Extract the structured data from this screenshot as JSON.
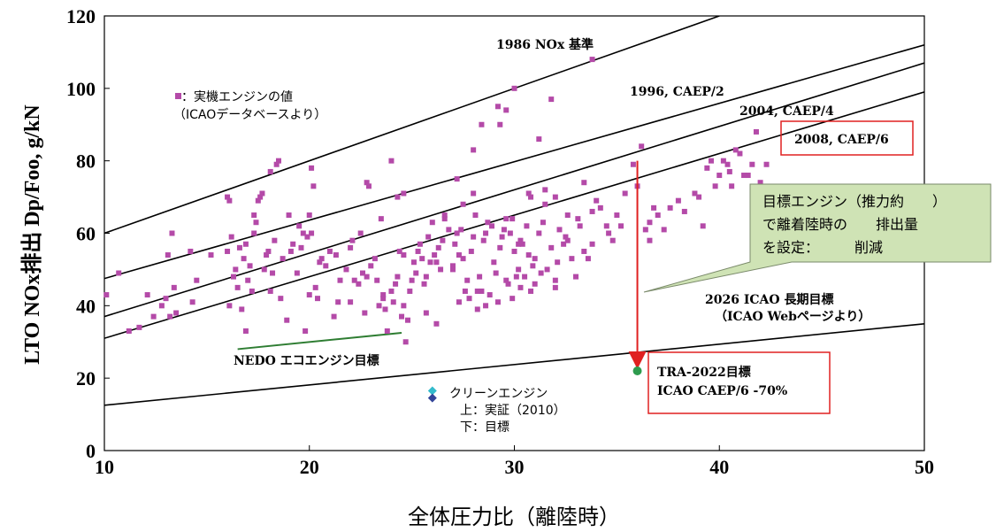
{
  "chart_data": {
    "type": "scatter",
    "xlabel": "全体圧力比（離陸時）",
    "ylabel": "LTO NOx排出  Dp/Foo, g/kN",
    "xlim": [
      10,
      50
    ],
    "ylim": [
      0,
      120
    ],
    "x_ticks": [
      "10",
      "20",
      "30",
      "40",
      "50"
    ],
    "y_ticks": [
      "0",
      "20",
      "40",
      "60",
      "80",
      "100",
      "120"
    ],
    "grid": false,
    "legend": {
      "marker_label": "：実機エンジンの値",
      "source_label": "（ICAOデータベースより）",
      "color": "#b44aa8"
    },
    "lines": [
      {
        "name": "1986 NOx 基準",
        "points": [
          [
            10,
            60
          ],
          [
            40,
            120
          ]
        ]
      },
      {
        "name": "1996, CAEP/2",
        "points": [
          [
            10,
            47.5
          ],
          [
            50,
            112
          ]
        ]
      },
      {
        "name": "2004, CAEP/4",
        "points": [
          [
            10,
            37
          ],
          [
            50,
            107
          ]
        ]
      },
      {
        "name": "2008, CAEP/6",
        "points": [
          [
            10,
            31
          ],
          [
            50,
            99
          ]
        ]
      },
      {
        "name": "2026 ICAO 長期目標",
        "points": [
          [
            10,
            12.5
          ],
          [
            50,
            35
          ]
        ]
      }
    ],
    "labels": {
      "line_1986": "1986 NOx 基準",
      "line_1996": "1996, CAEP/2",
      "line_2004": "2004, CAEP/4",
      "line_2008": "2008, CAEP/6",
      "longterm_1": "2026 ICAO 長期目標",
      "longterm_2": "（ICAO Webページより）",
      "nedo": "NEDO エコエンジン目標",
      "clean_title": "クリーンエンジン",
      "clean_top": "上：実証（2010）",
      "clean_bottom": "下：目標",
      "tra_1": "TRA-2022目標",
      "tra_2": "ICAO CAEP/6 -70%",
      "callout_1": "目標エンジン（推力約　　）",
      "callout_2": "で離着陸時の　　排出量",
      "callout_3": "を設定：　　　削減"
    },
    "nedo_line": {
      "points": [
        [
          16.5,
          28
        ],
        [
          24.5,
          32.5
        ]
      ],
      "color": "#2e7d32"
    },
    "clean_engine": {
      "demonstrated": {
        "x": 26,
        "y": 16.5,
        "color": "#33bbcc"
      },
      "target": {
        "x": 26,
        "y": 14.5,
        "color": "#334499"
      }
    },
    "tra_target": {
      "x": 36,
      "y": 22,
      "from_y": 80,
      "color": "#2e9b4e",
      "arrow_color": "#e02020"
    },
    "engine_points": [
      [
        10.1,
        43
      ],
      [
        10.7,
        49
      ],
      [
        11.2,
        33
      ],
      [
        11.7,
        34
      ],
      [
        12.1,
        43
      ],
      [
        12.4,
        37
      ],
      [
        12.8,
        40
      ],
      [
        13.0,
        42
      ],
      [
        13.1,
        54
      ],
      [
        13.2,
        37
      ],
      [
        13.3,
        60
      ],
      [
        13.4,
        45
      ],
      [
        13.5,
        38
      ],
      [
        14.2,
        55
      ],
      [
        14.3,
        41
      ],
      [
        14.5,
        47
      ],
      [
        15.2,
        54
      ],
      [
        16.0,
        55
      ],
      [
        16.2,
        59
      ],
      [
        16.0,
        70
      ],
      [
        16.1,
        40
      ],
      [
        16.3,
        48
      ],
      [
        16.4,
        50
      ],
      [
        16.5,
        45
      ],
      [
        16.6,
        56
      ],
      [
        16.7,
        39
      ],
      [
        16.8,
        53
      ],
      [
        16.9,
        57
      ],
      [
        16.9,
        33
      ],
      [
        17.0,
        47
      ],
      [
        17.1,
        51
      ],
      [
        17.2,
        44
      ],
      [
        17.3,
        60
      ],
      [
        17.3,
        65
      ],
      [
        17.4,
        63
      ],
      [
        17.5,
        69
      ],
      [
        17.6,
        70
      ],
      [
        17.7,
        71
      ],
      [
        17.8,
        50
      ],
      [
        17.9,
        54
      ],
      [
        18.0,
        55
      ],
      [
        18.1,
        44
      ],
      [
        18.2,
        49
      ],
      [
        18.3,
        58
      ],
      [
        18.4,
        79
      ],
      [
        18.5,
        80
      ],
      [
        18.6,
        42
      ],
      [
        18.7,
        53
      ],
      [
        18.9,
        36
      ],
      [
        19.0,
        65
      ],
      [
        19.1,
        55
      ],
      [
        19.2,
        57
      ],
      [
        19.4,
        49
      ],
      [
        19.5,
        62
      ],
      [
        19.6,
        56
      ],
      [
        19.7,
        60
      ],
      [
        19.8,
        33
      ],
      [
        19.9,
        59
      ],
      [
        20.0,
        65
      ],
      [
        20.1,
        60
      ],
      [
        20.2,
        73
      ],
      [
        20.3,
        45
      ],
      [
        20.4,
        42
      ],
      [
        20.5,
        52
      ],
      [
        20.6,
        53
      ],
      [
        20.8,
        51
      ],
      [
        21.0,
        55
      ],
      [
        21.2,
        37
      ],
      [
        21.3,
        54
      ],
      [
        21.5,
        47
      ],
      [
        21.8,
        50
      ],
      [
        22.0,
        56
      ],
      [
        22.1,
        58
      ],
      [
        22.2,
        47
      ],
      [
        22.4,
        46
      ],
      [
        22.5,
        60
      ],
      [
        22.6,
        49
      ],
      [
        22.8,
        48
      ],
      [
        23.0,
        51
      ],
      [
        23.2,
        53
      ],
      [
        23.3,
        47
      ],
      [
        23.4,
        40
      ],
      [
        23.5,
        64
      ],
      [
        23.6,
        42
      ],
      [
        23.7,
        39
      ],
      [
        23.8,
        33
      ],
      [
        24.0,
        44
      ],
      [
        24.1,
        41
      ],
      [
        24.2,
        46
      ],
      [
        24.3,
        48
      ],
      [
        24.4,
        55
      ],
      [
        24.5,
        37
      ],
      [
        24.6,
        40
      ],
      [
        24.7,
        30
      ],
      [
        24.8,
        36
      ],
      [
        24.9,
        44
      ],
      [
        25.0,
        47
      ],
      [
        25.1,
        52
      ],
      [
        25.2,
        49
      ],
      [
        25.3,
        55
      ],
      [
        25.4,
        57
      ],
      [
        25.5,
        53
      ],
      [
        25.6,
        46
      ],
      [
        25.7,
        48
      ],
      [
        25.8,
        59
      ],
      [
        25.9,
        52
      ],
      [
        26.0,
        63
      ],
      [
        26.1,
        54
      ],
      [
        26.2,
        35
      ],
      [
        26.3,
        56
      ],
      [
        26.4,
        50
      ],
      [
        26.5,
        58
      ],
      [
        26.6,
        64
      ],
      [
        26.8,
        61
      ],
      [
        27.0,
        51
      ],
      [
        27.1,
        57
      ],
      [
        27.2,
        60
      ],
      [
        27.3,
        54
      ],
      [
        27.4,
        61
      ],
      [
        27.5,
        53
      ],
      [
        27.6,
        44
      ],
      [
        27.7,
        47
      ],
      [
        27.8,
        42
      ],
      [
        27.9,
        55
      ],
      [
        28.0,
        59
      ],
      [
        28.1,
        65
      ],
      [
        28.2,
        39
      ],
      [
        28.3,
        48
      ],
      [
        28.4,
        44
      ],
      [
        28.5,
        58
      ],
      [
        28.6,
        60
      ],
      [
        28.7,
        63
      ],
      [
        28.8,
        43
      ],
      [
        28.9,
        62
      ],
      [
        29.0,
        52
      ],
      [
        29.1,
        49
      ],
      [
        29.2,
        41
      ],
      [
        29.3,
        56
      ],
      [
        29.4,
        59
      ],
      [
        29.5,
        61
      ],
      [
        29.6,
        64
      ],
      [
        29.7,
        46
      ],
      [
        29.8,
        60
      ],
      [
        29.9,
        64
      ],
      [
        30.0,
        55
      ],
      [
        30.1,
        48
      ],
      [
        30.2,
        50
      ],
      [
        30.3,
        58
      ],
      [
        30.4,
        57
      ],
      [
        30.5,
        48
      ],
      [
        30.6,
        62
      ],
      [
        30.7,
        54
      ],
      [
        30.8,
        44
      ],
      [
        30.9,
        51
      ],
      [
        31.0,
        53
      ],
      [
        31.2,
        60
      ],
      [
        31.3,
        49
      ],
      [
        31.5,
        68
      ],
      [
        31.6,
        50
      ],
      [
        31.8,
        56
      ],
      [
        32.0,
        47
      ],
      [
        32.1,
        52
      ],
      [
        32.2,
        61
      ],
      [
        32.4,
        57
      ],
      [
        32.5,
        59
      ],
      [
        32.6,
        58
      ],
      [
        32.8,
        53
      ],
      [
        33.0,
        48
      ],
      [
        33.2,
        62
      ],
      [
        33.4,
        55
      ],
      [
        33.6,
        53
      ],
      [
        33.8,
        66
      ],
      [
        34.0,
        69
      ],
      [
        34.2,
        67
      ],
      [
        34.5,
        62
      ],
      [
        34.8,
        58
      ],
      [
        35.0,
        65
      ],
      [
        35.2,
        62
      ],
      [
        35.4,
        71
      ],
      [
        35.8,
        79
      ],
      [
        36.0,
        73
      ],
      [
        36.2,
        84
      ],
      [
        36.4,
        61
      ],
      [
        36.6,
        63
      ],
      [
        36.8,
        67
      ],
      [
        37.0,
        65
      ],
      [
        37.3,
        61
      ],
      [
        37.6,
        67
      ],
      [
        38.0,
        69
      ],
      [
        38.3,
        66
      ],
      [
        38.8,
        71
      ],
      [
        39.0,
        70
      ],
      [
        39.2,
        62
      ],
      [
        39.4,
        78
      ],
      [
        39.6,
        80
      ],
      [
        39.8,
        73
      ],
      [
        40.0,
        76
      ],
      [
        40.2,
        80
      ],
      [
        40.4,
        79
      ],
      [
        40.5,
        77
      ],
      [
        40.6,
        73
      ],
      [
        40.8,
        83
      ],
      [
        41.0,
        82
      ],
      [
        41.2,
        76
      ],
      [
        41.4,
        76
      ],
      [
        41.6,
        79
      ],
      [
        41.8,
        88
      ],
      [
        42.0,
        74
      ],
      [
        42.3,
        79
      ],
      [
        22.9,
        73
      ],
      [
        22.8,
        74
      ],
      [
        24.6,
        71
      ],
      [
        27.2,
        75
      ],
      [
        28.0,
        83
      ],
      [
        28.4,
        90
      ],
      [
        29.2,
        95
      ],
      [
        29.6,
        94
      ],
      [
        30.7,
        71
      ],
      [
        31.2,
        86
      ],
      [
        31.8,
        97
      ],
      [
        33.4,
        74
      ],
      [
        30.0,
        100
      ],
      [
        33.8,
        108
      ],
      [
        24.0,
        80
      ],
      [
        20.1,
        78
      ],
      [
        18.1,
        77
      ],
      [
        16.1,
        69
      ],
      [
        24.3,
        70
      ],
      [
        27.5,
        68
      ],
      [
        26.6,
        65
      ],
      [
        31.5,
        72
      ],
      [
        30.8,
        70
      ],
      [
        29.3,
        90
      ],
      [
        27.0,
        50
      ],
      [
        28.0,
        71
      ],
      [
        29.6,
        47
      ],
      [
        32.0,
        45
      ],
      [
        28.2,
        44
      ],
      [
        31.0,
        46
      ],
      [
        30.2,
        57
      ],
      [
        26.2,
        52
      ],
      [
        27.3,
        41
      ],
      [
        28.6,
        40
      ],
      [
        29.9,
        42
      ],
      [
        30.3,
        45
      ],
      [
        25.7,
        38
      ],
      [
        22.7,
        38
      ],
      [
        21.4,
        41
      ],
      [
        20.0,
        43
      ],
      [
        22.0,
        41
      ],
      [
        23.6,
        43
      ],
      [
        24.6,
        54
      ],
      [
        32.6,
        65
      ],
      [
        31.4,
        63
      ],
      [
        33.8,
        57
      ],
      [
        34.6,
        60
      ],
      [
        36.6,
        58
      ],
      [
        33.1,
        64
      ],
      [
        32.0,
        70
      ]
    ]
  }
}
